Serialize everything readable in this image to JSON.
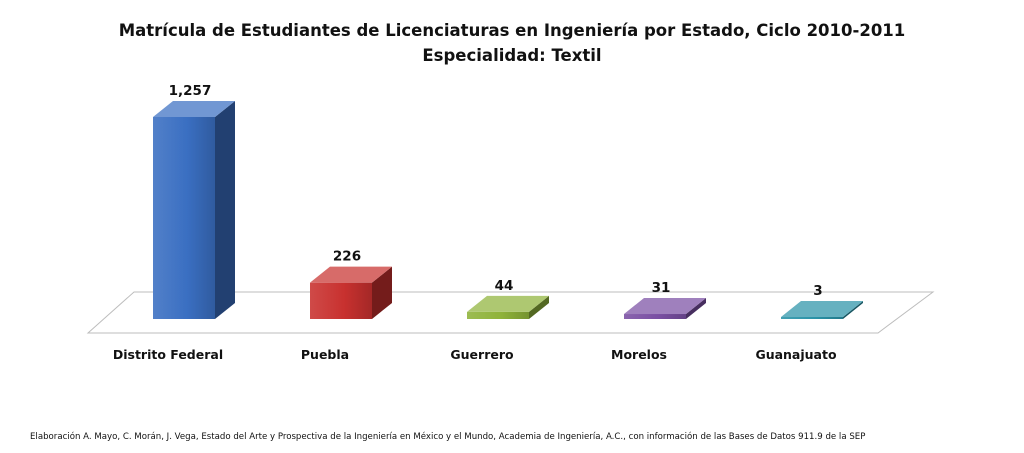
{
  "chart_data": {
    "type": "bar",
    "title": "Matrícula de Estudiantes de Licenciaturas en Ingeniería por Estado, Ciclo 2010-2011",
    "subtitle": "Especialidad: Textil",
    "xlabel": "",
    "ylabel": "",
    "categories": [
      "Distrito Federal",
      "Puebla",
      "Guerrero",
      "Morelos",
      "Guanajuato"
    ],
    "values": [
      1257,
      226,
      44,
      31,
      3
    ],
    "data_labels": [
      "1,257",
      "226",
      "44",
      "31",
      "3"
    ],
    "colors": [
      "#3a6fc2",
      "#c8312f",
      "#8fb33a",
      "#7a4fa3",
      "#2a93a8"
    ],
    "ylim": [
      0,
      1257
    ],
    "grid": false,
    "legend": "none",
    "style": "3d-column"
  },
  "source_note": "Elaboración A. Mayo, C. Morán, J. Vega, Estado del Arte y Prospectiva de la Ingeniería en México y el Mundo, Academia de Ingeniería, A.C., con información de las Bases de Datos 911.9 de la SEP"
}
